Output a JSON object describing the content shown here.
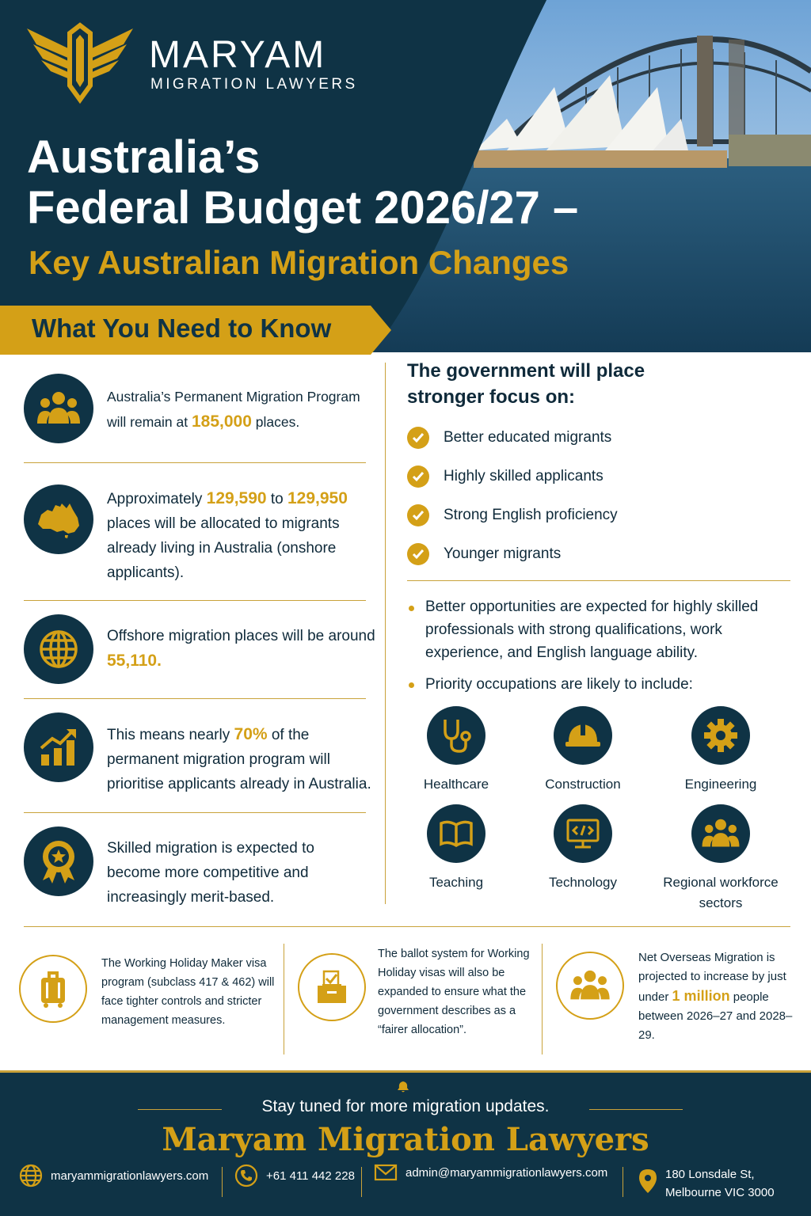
{
  "brand": {
    "name": "MARYAM",
    "subtitle": "MIGRATION LAWYERS"
  },
  "title": {
    "line1": "Australia’s",
    "line2": "Federal Budget 2026/27 –",
    "line3": "Key Australian Migration Changes"
  },
  "banner": "What You Need to Know",
  "left_items": [
    {
      "icon": "people-icon",
      "pre": "Australia’s Permanent Migration Program will remain at ",
      "highlight": "185,000",
      "post": " places."
    },
    {
      "icon": "australia-map-icon",
      "pre": "Approximately ",
      "highlight": "129,590",
      "mid": " to ",
      "highlight2": "129,950",
      "post": " places will be allocated to migrants already living in Australia (onshore applicants)."
    },
    {
      "icon": "globe-icon",
      "pre": "Offshore migration places will be around ",
      "highlight": "55,110.",
      "post": ""
    },
    {
      "icon": "growth-chart-icon",
      "pre": "This means nearly ",
      "highlight": "70%",
      "post": " of the permanent migration program will prioritise applicants already in Australia."
    },
    {
      "icon": "award-badge-icon",
      "text": "Skilled migration is expected to become more competitive and increasingly merit-based."
    }
  ],
  "focus": {
    "title": "The government will place stronger focus on:",
    "items": [
      "Better educated migrants",
      "Highly skilled applicants",
      "Strong English proficiency",
      "Younger migrants"
    ]
  },
  "bullets": [
    "Better opportunities are expected for highly skilled professionals with strong qualifications, work experience, and English language ability.",
    "Priority occupations are likely to include:"
  ],
  "occupations": [
    {
      "label": "Healthcare",
      "icon": "stethoscope-icon"
    },
    {
      "label": "Construction",
      "icon": "hard-hat-icon"
    },
    {
      "label": "Engineering",
      "icon": "gear-icon"
    },
    {
      "label": "Teaching",
      "icon": "book-icon"
    },
    {
      "label": "Technology",
      "icon": "computer-code-icon"
    },
    {
      "label": "Regional workforce sectors",
      "icon": "group-icon"
    }
  ],
  "bottom_items": [
    {
      "icon": "luggage-icon",
      "text": "The Working Holiday Maker visa program (subclass 417 & 462) will face tighter controls and stricter management measures."
    },
    {
      "icon": "ballot-box-icon",
      "text": "The ballot system for Working Holiday visas will also be expanded to ensure what the government describes as a “fairer allocation”."
    },
    {
      "icon": "people-icon",
      "pre": "Net Overseas Migration is projected to increase by just under ",
      "highlight": "1 million",
      "post": " people between 2026–27 and 2028–29."
    }
  ],
  "footer": {
    "tagline": "Stay tuned for more migration updates.",
    "brand": "Maryam Migration Lawyers",
    "website": "maryammigrationlawyers.com",
    "phone": "+61 411 442 228",
    "email": "admin@maryammigrationlawyers.com",
    "address_line1": "180 Lonsdale St,",
    "address_line2": "Melbourne VIC 3000"
  },
  "colors": {
    "navy": "#0f3345",
    "gold": "#d4a017",
    "white": "#ffffff"
  }
}
